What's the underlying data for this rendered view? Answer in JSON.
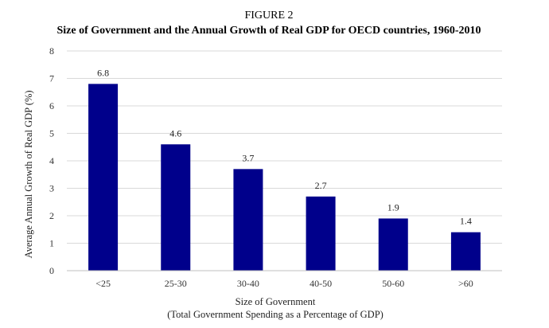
{
  "figure_label": "FIGURE 2",
  "chart_data": {
    "type": "bar",
    "title": "Size of Government and the Annual Growth of Real GDP for OECD countries, 1960-2010",
    "xlabel": "Size of Government",
    "xlabel_sub": "(Total Government Spending as a Percentage of GDP)",
    "ylabel": "Average Annual Growth of Real GDP (%)",
    "categories": [
      "<25",
      "25-30",
      "30-40",
      "40-50",
      "50-60",
      ">60"
    ],
    "values": [
      6.8,
      4.6,
      3.7,
      2.7,
      1.9,
      1.4
    ],
    "data_labels": [
      "6.8",
      "4.6",
      "3.7",
      "2.7",
      "1.9",
      "1.4"
    ],
    "ylim": [
      0,
      8
    ],
    "yticks": [
      0,
      1,
      2,
      3,
      4,
      5,
      6,
      7,
      8
    ],
    "grid": true,
    "legend": "none",
    "bar_color": "#00008B",
    "grid_color": "#d9d9d9"
  }
}
